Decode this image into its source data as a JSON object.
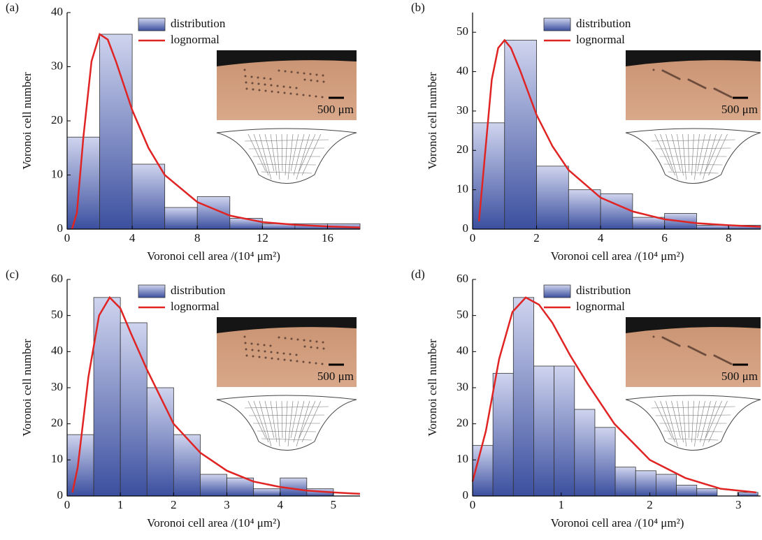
{
  "chart_data": [
    {
      "type": "histogram",
      "panel_label": "(a)",
      "xlabel": "Voronoi cell area /(10⁴ μm²)",
      "ylabel": "Voronoi cell number",
      "bins": [
        0,
        2,
        4,
        6,
        8,
        10,
        12,
        14,
        16,
        18
      ],
      "series": [
        {
          "name": "distribution",
          "color": "#4a5cad",
          "values": [
            17,
            36,
            12,
            4,
            6,
            2,
            1,
            1,
            1
          ]
        },
        {
          "name": "lognormal",
          "type": "line",
          "color": "#e02424",
          "x": [
            0.3,
            0.6,
            1,
            1.5,
            2,
            2.5,
            3,
            4,
            5,
            6,
            8,
            10,
            12,
            14,
            16,
            18
          ],
          "values": [
            0,
            3,
            17,
            31,
            36,
            35,
            31,
            22,
            15,
            10,
            5,
            2.5,
            1.3,
            0.8,
            0.5,
            0.3
          ]
        }
      ],
      "xlim": [
        0,
        18
      ],
      "xticks": [
        0,
        4,
        8,
        12,
        16
      ],
      "ylim": [
        0,
        40
      ],
      "yticks": [
        0,
        10,
        20,
        30,
        40
      ],
      "inset_label": "500 μm"
    },
    {
      "type": "histogram",
      "panel_label": "(b)",
      "xlabel": "Voronoi cell area /(10⁴ μm²)",
      "ylabel": "Voronoi cell number",
      "bins": [
        0,
        1,
        2,
        3,
        4,
        5,
        6,
        7,
        8,
        9
      ],
      "series": [
        {
          "name": "distribution",
          "color": "#4a5cad",
          "values": [
            27,
            48,
            16,
            10,
            9,
            3,
            4,
            1,
            1
          ]
        },
        {
          "name": "lognormal",
          "type": "line",
          "color": "#e02424",
          "x": [
            0.2,
            0.4,
            0.6,
            0.8,
            1,
            1.2,
            1.5,
            2,
            2.5,
            3,
            4,
            5,
            6,
            7,
            8,
            9
          ],
          "values": [
            2,
            20,
            38,
            46,
            48,
            46,
            40,
            29,
            21,
            15,
            8,
            4.5,
            2.5,
            1.5,
            1,
            0.6
          ]
        }
      ],
      "xlim": [
        0,
        9
      ],
      "xticks": [
        0,
        2,
        4,
        6,
        8
      ],
      "ylim": [
        0,
        55
      ],
      "yticks": [
        0,
        10,
        20,
        30,
        40,
        50
      ],
      "inset_label": "500 μm"
    },
    {
      "type": "histogram",
      "panel_label": "(c)",
      "xlabel": "Voronoi cell area /(10⁴ μm²)",
      "ylabel": "Voronoi cell number",
      "bins": [
        0,
        0.5,
        1,
        1.5,
        2,
        2.5,
        3,
        3.5,
        4,
        4.5,
        5
      ],
      "series": [
        {
          "name": "distribution",
          "color": "#4a5cad",
          "values": [
            17,
            55,
            48,
            30,
            17,
            6,
            5,
            2,
            5,
            2
          ]
        },
        {
          "name": "lognormal",
          "type": "line",
          "color": "#e02424",
          "x": [
            0.1,
            0.2,
            0.4,
            0.6,
            0.8,
            1,
            1.2,
            1.5,
            2,
            2.5,
            3,
            3.5,
            4,
            4.5,
            5,
            5.5
          ],
          "values": [
            1,
            8,
            33,
            50,
            55,
            52,
            45,
            35,
            20,
            12,
            7,
            4,
            2.5,
            1.5,
            1,
            0.6
          ]
        }
      ],
      "xlim": [
        0,
        5.5
      ],
      "xticks": [
        0,
        1,
        2,
        3,
        4,
        5
      ],
      "ylim": [
        0,
        60
      ],
      "yticks": [
        0,
        10,
        20,
        30,
        40,
        50,
        60
      ],
      "inset_label": "500 μm"
    },
    {
      "type": "histogram",
      "panel_label": "(d)",
      "xlabel": "Voronoi cell area /(10⁴ μm²)",
      "ylabel": "Voronoi cell number",
      "bins": [
        0,
        0.23,
        0.46,
        0.69,
        0.92,
        1.15,
        1.38,
        1.61,
        1.84,
        2.07,
        2.3,
        2.53,
        2.76,
        2.99,
        3.22
      ],
      "series": [
        {
          "name": "distribution",
          "color": "#4a5cad",
          "values": [
            14,
            34,
            55,
            36,
            36,
            24,
            19,
            8,
            7,
            6,
            3,
            2,
            0,
            1
          ]
        },
        {
          "name": "lognormal",
          "type": "line",
          "color": "#e02424",
          "x": [
            0,
            0.15,
            0.3,
            0.45,
            0.6,
            0.75,
            0.9,
            1.1,
            1.3,
            1.6,
            2,
            2.4,
            2.8,
            3.2
          ],
          "values": [
            4,
            18,
            38,
            51,
            55,
            53,
            48,
            39,
            31,
            20,
            10,
            5,
            2,
            1
          ]
        }
      ],
      "xlim": [
        0,
        3.25
      ],
      "xticks": [
        0,
        1,
        2,
        3
      ],
      "ylim": [
        0,
        60
      ],
      "yticks": [
        0,
        10,
        20,
        30,
        40,
        50,
        60
      ],
      "inset_label": "500 μm"
    }
  ]
}
